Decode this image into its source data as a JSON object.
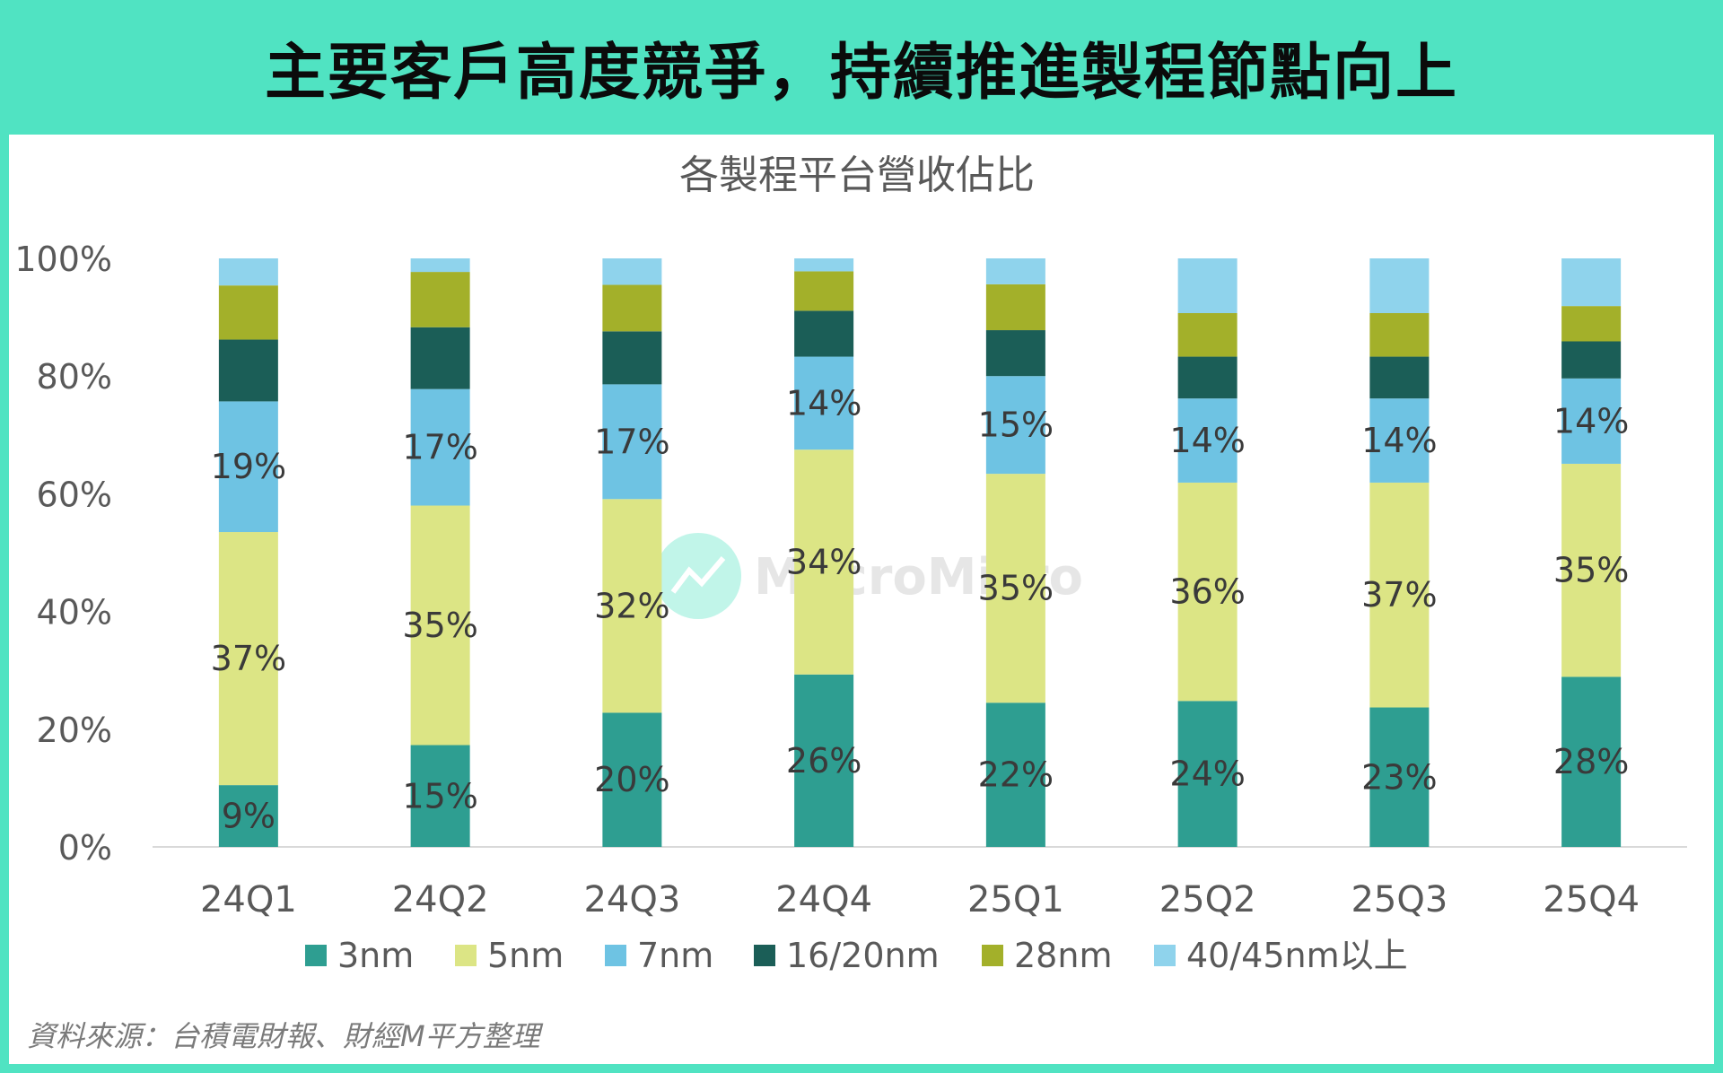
{
  "title": "主要客戶高度競爭，持續推進製程節點向上",
  "source": "資料來源：台積電財報、財經M平方整理",
  "watermark": "MacroMicro",
  "colors": {
    "frame": "#50e3c2",
    "3nm": "#2e9e91",
    "5nm": "#dce585",
    "7nm": "#6ec3e3",
    "16/20nm": "#1b5e57",
    "28nm": "#a3b02a",
    "40/45nm以上": "#8fd3ec"
  },
  "chart_data": {
    "type": "bar",
    "stacked": true,
    "title": "各製程平台營收佔比",
    "categories": [
      "24Q1",
      "24Q2",
      "24Q3",
      "24Q4",
      "25Q1",
      "25Q2",
      "25Q3",
      "25Q4"
    ],
    "ylim": [
      0,
      100
    ],
    "yticks": [
      "0%",
      "20%",
      "40%",
      "60%",
      "80%",
      "100%"
    ],
    "legend_position": "bottom",
    "grid": false,
    "series": [
      {
        "name": "3nm",
        "values": [
          10.5,
          17.3,
          22.8,
          29.3,
          24.5,
          24.8,
          23.7,
          28.9
        ],
        "labels": [
          "9%",
          "15%",
          "20%",
          "26%",
          "22%",
          "24%",
          "23%",
          "28%"
        ]
      },
      {
        "name": "5nm",
        "values": [
          43.0,
          40.7,
          36.3,
          38.2,
          38.9,
          37.1,
          38.2,
          36.2
        ],
        "labels": [
          "37%",
          "35%",
          "32%",
          "34%",
          "35%",
          "36%",
          "37%",
          "35%"
        ]
      },
      {
        "name": "7nm",
        "values": [
          22.2,
          19.8,
          19.5,
          15.8,
          16.6,
          14.3,
          14.3,
          14.5
        ],
        "labels": [
          "19%",
          "17%",
          "17%",
          "14%",
          "15%",
          "14%",
          "14%",
          "14%"
        ]
      },
      {
        "name": "16/20nm",
        "values": [
          10.5,
          10.5,
          9.0,
          7.8,
          7.8,
          7.1,
          7.1,
          6.3
        ],
        "labels": [
          "",
          "",
          "",
          "",
          "",
          "",
          "",
          ""
        ]
      },
      {
        "name": "28nm",
        "values": [
          9.2,
          9.4,
          7.9,
          6.7,
          7.8,
          7.4,
          7.4,
          6.0
        ],
        "labels": [
          "",
          "",
          "",
          "",
          "",
          "",
          "",
          ""
        ]
      },
      {
        "name": "40/45nm以上",
        "values": [
          4.6,
          2.3,
          4.5,
          2.2,
          4.4,
          9.3,
          9.3,
          8.1
        ],
        "labels": [
          "",
          "",
          "",
          "",
          "",
          "",
          "",
          ""
        ]
      }
    ]
  }
}
